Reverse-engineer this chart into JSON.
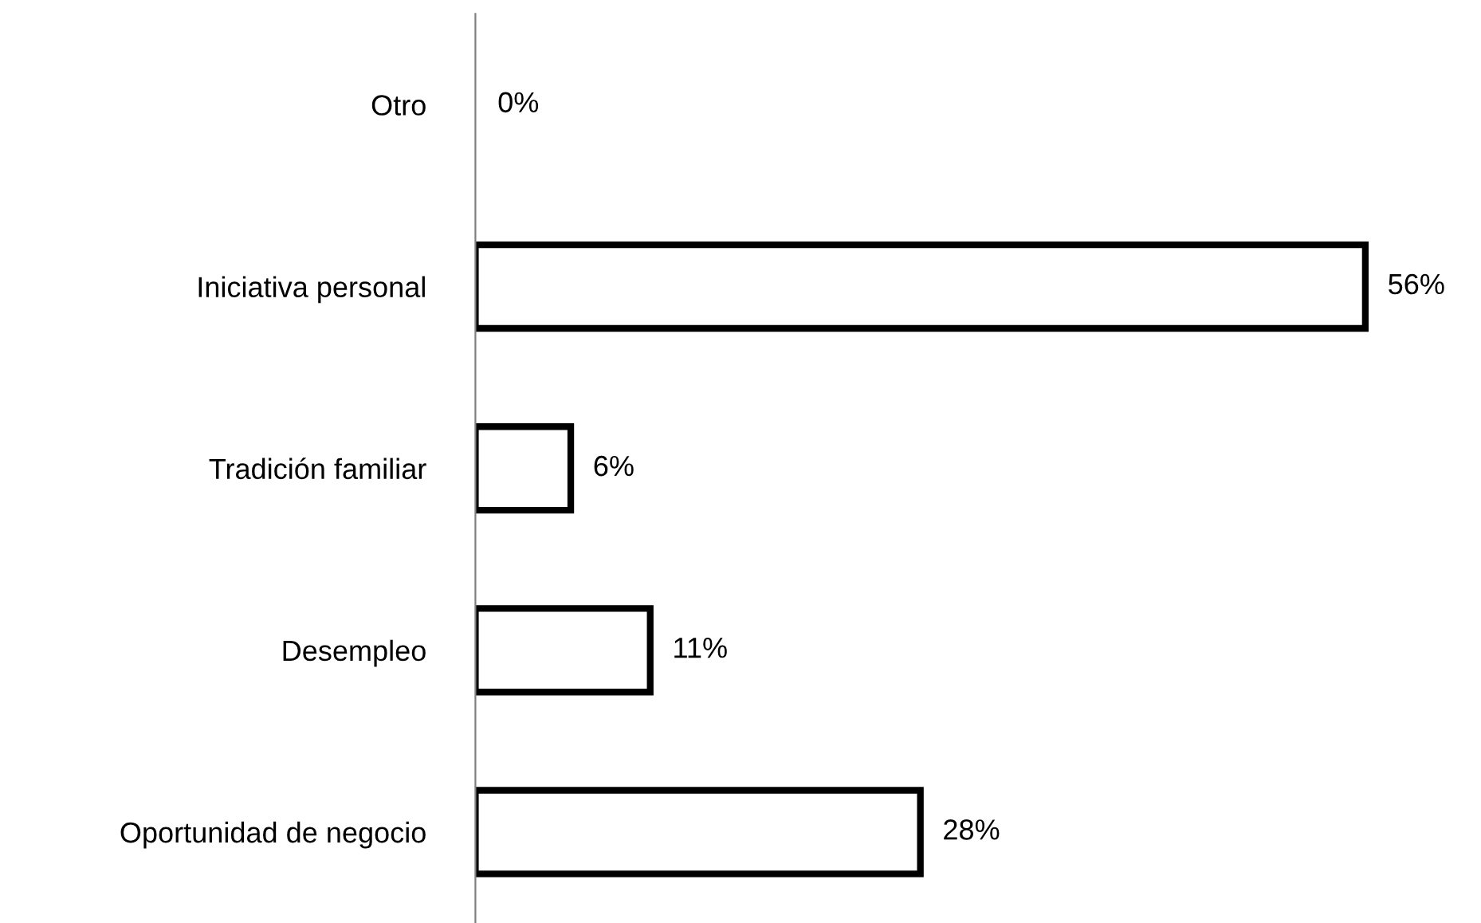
{
  "chart_data": {
    "type": "bar",
    "orientation": "horizontal",
    "categories": [
      "Otro",
      "Iniciativa personal",
      "Tradición familiar",
      "Desempleo",
      "Oportunidad de negocio"
    ],
    "values": [
      0,
      56,
      6,
      11,
      28
    ],
    "value_labels": [
      "0%",
      "56%",
      "6%",
      "11%",
      "28%"
    ],
    "color": "#ffffff",
    "grid": false,
    "legend": false
  }
}
